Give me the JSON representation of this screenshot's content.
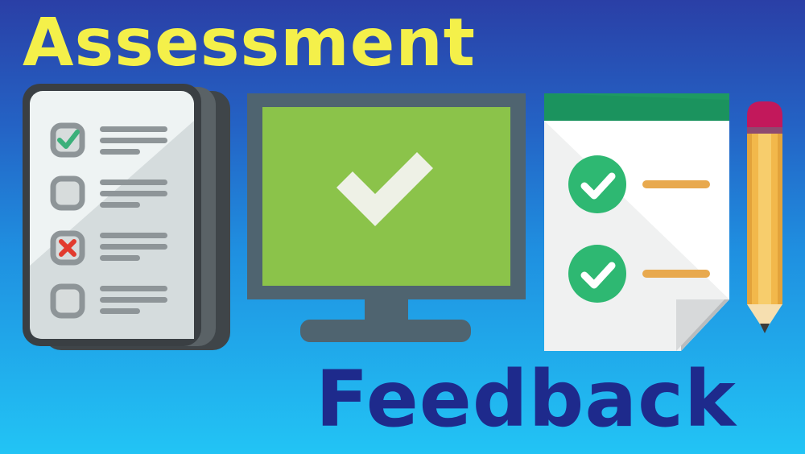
{
  "banner": {
    "title_top": "Assessment",
    "title_bottom": "Feedback",
    "colors": {
      "title_top": "#f4f04a",
      "title_bottom": "#1e2a8c",
      "background_top": "#2a3fa6",
      "background_bottom": "#22c4f5"
    }
  },
  "icons": {
    "checklist": "checklist-clipboard-icon",
    "monitor": "monitor-checkmark-icon",
    "document": "document-checklist-icon",
    "pencil": "pencil-icon"
  }
}
